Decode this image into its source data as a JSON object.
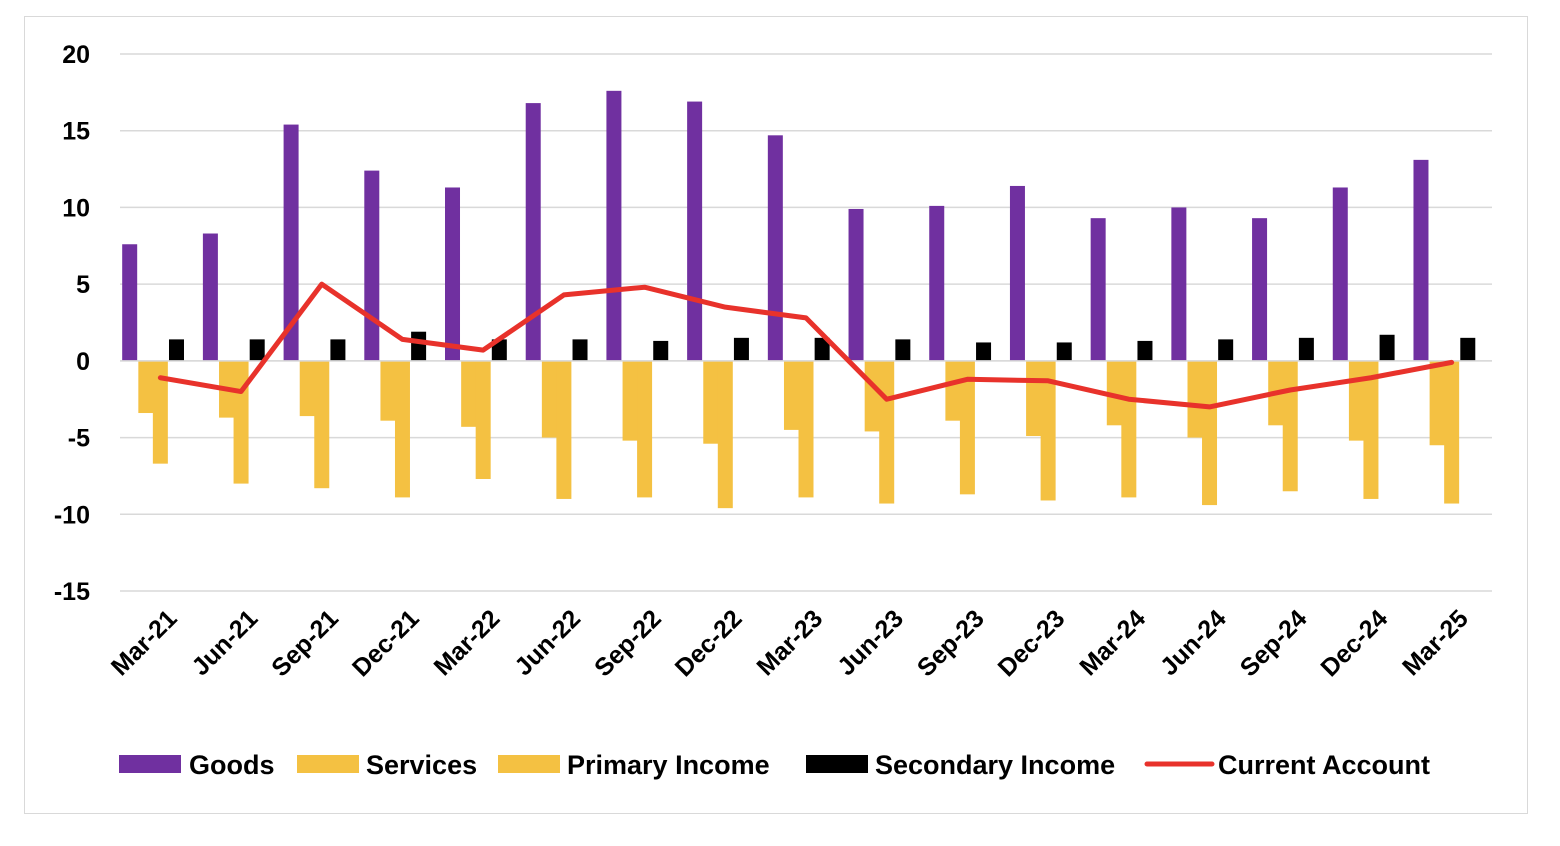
{
  "chart_data": {
    "type": "bar",
    "title": "",
    "xlabel": "",
    "ylabel": "",
    "ylim": [
      -15,
      20
    ],
    "yticks": [
      20,
      15,
      10,
      5,
      0,
      -5,
      -10,
      -15
    ],
    "grid": true,
    "legend_position": "bottom",
    "categories": [
      "Mar-21",
      "Jun-21",
      "Sep-21",
      "Dec-21",
      "Mar-22",
      "Jun-22",
      "Sep-22",
      "Dec-22",
      "Mar-23",
      "Jun-23",
      "Sep-23",
      "Dec-23",
      "Mar-24",
      "Jun-24",
      "Sep-24",
      "Dec-24",
      "Mar-25"
    ],
    "series": [
      {
        "name": "Goods",
        "kind": "bar",
        "color": "#7030a0",
        "values": [
          7.6,
          8.3,
          15.4,
          12.4,
          11.3,
          16.8,
          17.6,
          16.9,
          14.7,
          9.9,
          10.1,
          11.4,
          9.3,
          10.0,
          9.3,
          11.3,
          13.1
        ]
      },
      {
        "name": "Services",
        "kind": "bar",
        "color": "#f4c142",
        "values": [
          -3.4,
          -3.7,
          -3.6,
          -3.9,
          -4.3,
          -5.0,
          -5.2,
          -5.4,
          -4.5,
          -4.6,
          -3.9,
          -4.9,
          -4.2,
          -5.0,
          -4.2,
          -5.2,
          -5.5
        ]
      },
      {
        "name": "Primary Income",
        "kind": "bar",
        "color": "#f4c142",
        "values": [
          -6.7,
          -8.0,
          -8.3,
          -8.9,
          -7.7,
          -9.0,
          -8.9,
          -9.6,
          -8.9,
          -9.3,
          -8.7,
          -9.1,
          -8.9,
          -9.4,
          -8.5,
          -9.0,
          -9.3
        ]
      },
      {
        "name": "Secondary Income",
        "kind": "bar",
        "color": "#000000",
        "values": [
          1.4,
          1.4,
          1.4,
          1.9,
          1.4,
          1.4,
          1.3,
          1.5,
          1.5,
          1.4,
          1.2,
          1.2,
          1.3,
          1.4,
          1.5,
          1.7,
          1.5
        ]
      },
      {
        "name": "Current Account",
        "kind": "line",
        "color": "#e8322b",
        "values": [
          -1.1,
          -2.0,
          5.0,
          1.4,
          0.7,
          4.3,
          4.8,
          3.5,
          2.8,
          -2.5,
          -1.2,
          -1.3,
          -2.5,
          -3.0,
          -1.9,
          -1.1,
          -0.1
        ]
      }
    ]
  }
}
